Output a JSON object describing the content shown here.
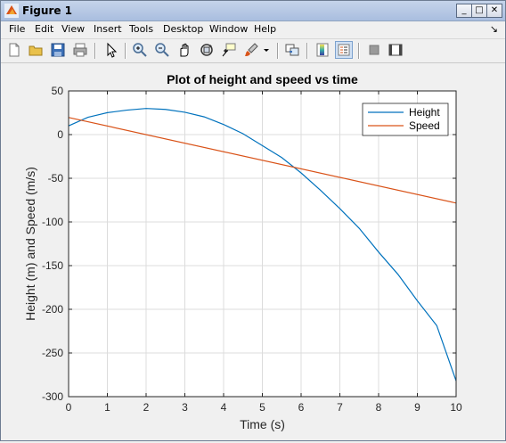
{
  "window": {
    "title": "Figure 1"
  },
  "window_buttons": {
    "minimize": "_",
    "maximize": "□",
    "close": "✕"
  },
  "menu": [
    "File",
    "Edit",
    "View",
    "Insert",
    "Tools",
    "Desktop",
    "Window",
    "Help"
  ],
  "menu_arrow": "↘",
  "toolbar_icons": [
    "new-figure-icon",
    "open-file-icon",
    "save-icon",
    "print-icon",
    "edit-plot-icon",
    "zoom-in-icon",
    "zoom-out-icon",
    "pan-icon",
    "rotate-3d-icon",
    "data-cursor-icon",
    "brush-icon",
    "link-plot-icon",
    "colorbar-icon",
    "legend-icon",
    "hide-plot-tools-icon",
    "show-plot-tools-icon"
  ],
  "colors": {
    "height": "#0072bd",
    "speed": "#d95319",
    "grid": "#dcdcdc"
  },
  "chart_data": {
    "type": "line",
    "title": "Plot of height and speed vs time",
    "xlabel": "Time (s)",
    "ylabel": "Height (m) and Speed (m/s)",
    "xlim": [
      0,
      10
    ],
    "ylim": [
      -300,
      50
    ],
    "xticks": [
      0,
      1,
      2,
      3,
      4,
      5,
      6,
      7,
      8,
      9,
      10
    ],
    "yticks": [
      50,
      0,
      -50,
      -100,
      -150,
      -200,
      -250,
      -300
    ],
    "grid": true,
    "legend_position": "top-right",
    "series": [
      {
        "name": "Height",
        "x": [
          0,
          0.5,
          1,
          1.5,
          2,
          2.5,
          3,
          3.5,
          4,
          4.5,
          5,
          5.5,
          6,
          6.5,
          7,
          7.5,
          8,
          8.5,
          9,
          9.5,
          10
        ],
        "values": [
          10,
          19.8,
          25.1,
          28.0,
          29.9,
          28.8,
          25.6,
          20.3,
          11.6,
          1.0,
          -12.6,
          -26.3,
          -43.9,
          -63.7,
          -84.8,
          -107.3,
          -134.5,
          -160.0,
          -190.3,
          -218.6,
          -282.0
        ]
      },
      {
        "name": "Speed",
        "x": [
          0,
          10
        ],
        "values": [
          19.6,
          -78.4
        ]
      }
    ]
  }
}
